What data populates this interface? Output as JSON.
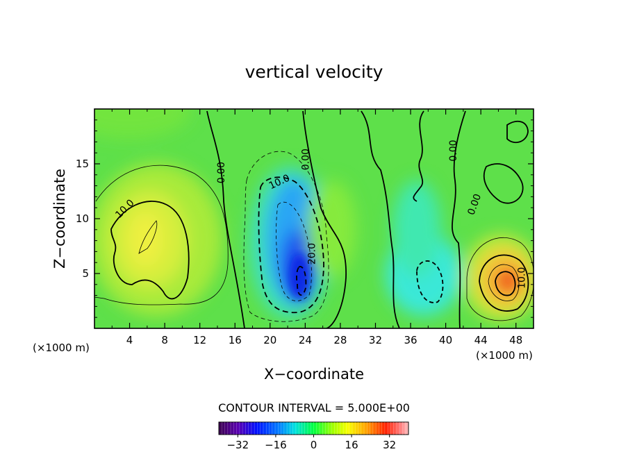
{
  "chart_data": {
    "type": "heatmap",
    "title": "vertical velocity",
    "xlabel": "X−coordinate",
    "ylabel": "Z−coordinate",
    "x_unit_left": "(×1000 m)",
    "x_unit_right": "(×1000 m)",
    "xlim": [
      0,
      50
    ],
    "ylim": [
      0,
      20
    ],
    "x_ticks": [
      4,
      8,
      12,
      16,
      20,
      24,
      28,
      32,
      36,
      40,
      44,
      48
    ],
    "y_ticks": [
      5,
      10,
      15
    ],
    "contour_interval_text": "CONTOUR INTERVAL = 5.000E+00",
    "colorbar": {
      "range": [
        -40,
        40
      ],
      "ticks": [
        -32,
        -16,
        0,
        16,
        32
      ],
      "tick_labels": [
        "−32",
        "−16",
        "0",
        "16",
        "32"
      ]
    },
    "contour_labels": [
      {
        "text": "10.0",
        "x": 3.7,
        "y": 10.7,
        "rot": -45
      },
      {
        "text": "0.00",
        "x": 14.8,
        "y": 14.2,
        "rot": -90
      },
      {
        "text": "10.0",
        "x": 21.2,
        "y": 13.1,
        "rot": -25
      },
      {
        "text": "0.00",
        "x": 24.4,
        "y": 15.4,
        "rot": -90
      },
      {
        "text": "20.0",
        "x": 25.1,
        "y": 6.8,
        "rot": -90
      },
      {
        "text": "0.00",
        "x": 41.2,
        "y": 16.2,
        "rot": -90
      },
      {
        "text": "0.00",
        "x": 43.6,
        "y": 11.2,
        "rot": -70
      },
      {
        "text": "10.0",
        "x": 49.0,
        "y": 4.6,
        "rot": -90
      }
    ],
    "features": [
      {
        "name": "updraft-left",
        "x": 6.5,
        "y": 8.0,
        "value": 15
      },
      {
        "name": "downdraft-core",
        "x": 23.5,
        "y": 4.5,
        "value": -25
      },
      {
        "name": "downdraft-weak",
        "x": 38.5,
        "y": 4.3,
        "value": -10
      },
      {
        "name": "updraft-right",
        "x": 47.0,
        "y": 4.5,
        "value": 25
      }
    ]
  }
}
